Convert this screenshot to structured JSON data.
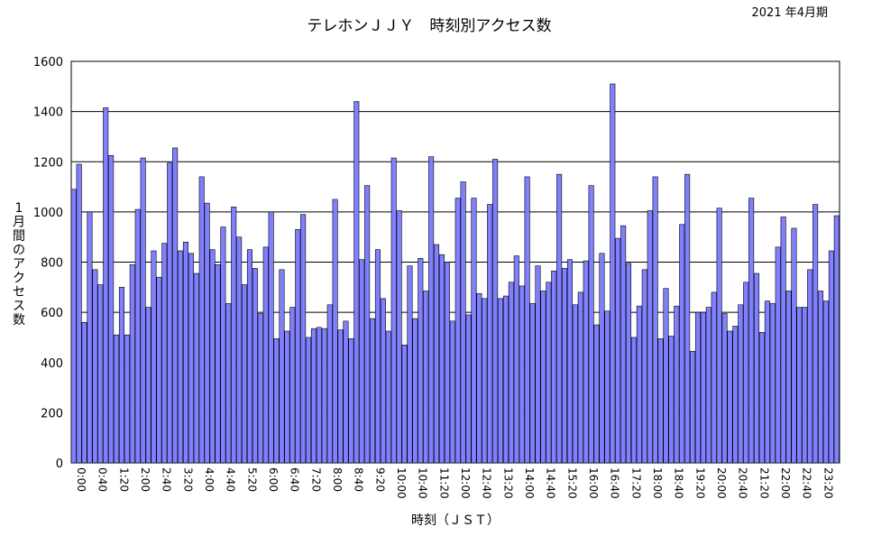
{
  "chart_data": {
    "type": "bar",
    "title": "テレホンＪＪＹ　時刻別アクセス数",
    "period": "2021 年4月期",
    "xlabel": "時刻（ＪＳＴ）",
    "ylabel": "1月間のアクセス数",
    "ylim": [
      0,
      1600
    ],
    "yticks": [
      0,
      200,
      400,
      600,
      800,
      1000,
      1200,
      1400,
      1600
    ],
    "xtick_labels": [
      "0:00",
      "0:40",
      "1:20",
      "2:00",
      "2:40",
      "3:20",
      "4:00",
      "4:40",
      "5:20",
      "6:00",
      "6:40",
      "7:20",
      "8:00",
      "8:40",
      "9:20",
      "10:00",
      "10:40",
      "11:20",
      "12:00",
      "12:40",
      "13:20",
      "14:00",
      "14:40",
      "15:20",
      "16:00",
      "16:40",
      "17:20",
      "18:00",
      "18:40",
      "19:20",
      "20:00",
      "20:40",
      "21:20",
      "22:00",
      "22:40",
      "23:20"
    ],
    "bar_color": "#8080ff",
    "grid": true,
    "interval_minutes": 10,
    "values": [
      1090,
      1190,
      560,
      1000,
      770,
      710,
      1415,
      1225,
      510,
      700,
      510,
      790,
      1010,
      1215,
      620,
      845,
      740,
      875,
      1195,
      1255,
      845,
      880,
      835,
      755,
      1140,
      1035,
      850,
      790,
      940,
      635,
      1020,
      900,
      710,
      850,
      775,
      595,
      860,
      1000,
      495,
      770,
      525,
      620,
      930,
      990,
      500,
      535,
      540,
      535,
      630,
      1050,
      530,
      565,
      495,
      1440,
      810,
      1105,
      575,
      850,
      655,
      525,
      1215,
      1005,
      470,
      785,
      575,
      815,
      685,
      1220,
      870,
      830,
      800,
      565,
      1055,
      1120,
      590,
      1055,
      675,
      655,
      1030,
      1210,
      655,
      665,
      720,
      825,
      705,
      1140,
      635,
      785,
      685,
      720,
      765,
      1150,
      775,
      810,
      630,
      680,
      805,
      1105,
      550,
      835,
      605,
      1510,
      895,
      945,
      795,
      500,
      625,
      770,
      1005,
      1140,
      495,
      695,
      505,
      625,
      950,
      1150,
      445,
      600,
      600,
      620,
      680,
      1015,
      595,
      525,
      545,
      630,
      720,
      1055,
      755,
      520,
      645,
      635,
      860,
      980,
      685,
      935,
      620,
      620,
      770,
      1030,
      685,
      645,
      845,
      985
    ]
  }
}
